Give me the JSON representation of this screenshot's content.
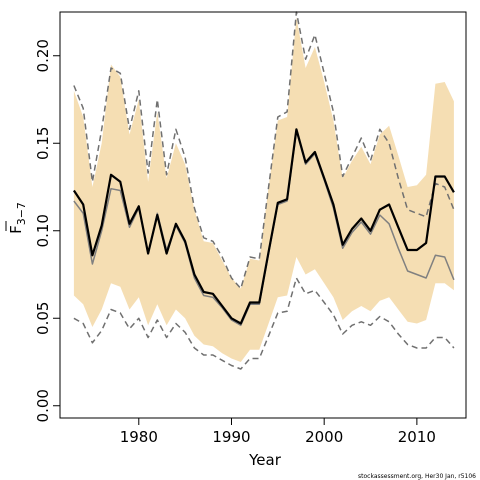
{
  "chart_data": {
    "type": "line",
    "xlabel": "Year",
    "ylabel_main": "F",
    "ylabel_sub": "3−7",
    "xlim": [
      1971.5,
      2015.3
    ],
    "ylim": [
      -0.007,
      0.225
    ],
    "x_ticks": [
      1980,
      1990,
      2000,
      2010
    ],
    "x_tick_labels": [
      "1980",
      "1990",
      "2000",
      "2010"
    ],
    "y_ticks": [
      0.0,
      0.05,
      0.1,
      0.15,
      0.2
    ],
    "y_tick_labels": [
      "0.00",
      "0.05",
      "0.10",
      "0.15",
      "0.20"
    ],
    "grid": false,
    "footnote": "stockassessment.org, Her30 Jan, r5106",
    "colors": {
      "band": "#f5deb3",
      "main": "#000000",
      "alt": "#808080",
      "ci": "#707070"
    },
    "x": [
      1973,
      1974,
      1975,
      1976,
      1977,
      1978,
      1979,
      1980,
      1981,
      1982,
      1983,
      1984,
      1985,
      1986,
      1987,
      1988,
      1989,
      1990,
      1991,
      1992,
      1993,
      1994,
      1995,
      1996,
      1997,
      1998,
      1999,
      2000,
      2001,
      2002,
      2003,
      2004,
      2005,
      2006,
      2007,
      2008,
      2009,
      2010,
      2011,
      2012,
      2013,
      2014
    ],
    "series": [
      {
        "role": "estimate",
        "style": "solid-bold",
        "values": [
          0.123,
          0.115,
          0.086,
          0.103,
          0.132,
          0.128,
          0.104,
          0.114,
          0.087,
          0.109,
          0.087,
          0.104,
          0.094,
          0.075,
          0.065,
          0.064,
          0.057,
          0.05,
          0.047,
          0.059,
          0.059,
          0.088,
          0.116,
          0.118,
          0.158,
          0.139,
          0.145,
          0.13,
          0.115,
          0.092,
          0.101,
          0.107,
          0.1,
          0.112,
          0.115,
          0.102,
          0.089,
          0.089,
          0.093,
          0.131,
          0.131,
          0.122
        ]
      },
      {
        "role": "alternative estimate",
        "style": "solid-grey",
        "values": [
          0.117,
          0.11,
          0.081,
          0.1,
          0.124,
          0.123,
          0.102,
          0.113,
          0.087,
          0.11,
          0.089,
          0.103,
          0.093,
          0.073,
          0.063,
          0.062,
          0.056,
          0.049,
          0.046,
          0.058,
          0.058,
          0.087,
          0.115,
          0.117,
          0.157,
          0.138,
          0.144,
          0.129,
          0.113,
          0.09,
          0.099,
          0.105,
          0.098,
          0.109,
          0.104,
          0.09,
          0.077,
          0.075,
          0.073,
          0.086,
          0.085,
          0.072
        ]
      },
      {
        "role": "band upper",
        "style": "fill",
        "values": [
          0.18,
          0.165,
          0.125,
          0.15,
          0.195,
          0.188,
          0.155,
          0.175,
          0.128,
          0.168,
          0.13,
          0.15,
          0.138,
          0.112,
          0.094,
          0.093,
          0.083,
          0.073,
          0.067,
          0.084,
          0.083,
          0.125,
          0.163,
          0.165,
          0.222,
          0.193,
          0.205,
          0.185,
          0.163,
          0.13,
          0.14,
          0.148,
          0.138,
          0.155,
          0.16,
          0.143,
          0.125,
          0.126,
          0.132,
          0.184,
          0.185,
          0.174
        ]
      },
      {
        "role": "band lower",
        "style": "fill",
        "values": [
          0.063,
          0.058,
          0.045,
          0.055,
          0.07,
          0.068,
          0.055,
          0.062,
          0.046,
          0.058,
          0.046,
          0.055,
          0.05,
          0.04,
          0.035,
          0.034,
          0.03,
          0.027,
          0.025,
          0.032,
          0.032,
          0.047,
          0.062,
          0.063,
          0.085,
          0.075,
          0.078,
          0.07,
          0.062,
          0.049,
          0.054,
          0.057,
          0.054,
          0.06,
          0.062,
          0.055,
          0.048,
          0.047,
          0.049,
          0.07,
          0.07,
          0.066
        ]
      },
      {
        "role": "alternative upper",
        "style": "dashed",
        "values": [
          0.183,
          0.17,
          0.128,
          0.158,
          0.193,
          0.19,
          0.158,
          0.18,
          0.133,
          0.175,
          0.132,
          0.158,
          0.142,
          0.113,
          0.096,
          0.094,
          0.085,
          0.073,
          0.067,
          0.085,
          0.084,
          0.125,
          0.165,
          0.168,
          0.225,
          0.198,
          0.212,
          0.19,
          0.168,
          0.131,
          0.142,
          0.153,
          0.14,
          0.158,
          0.15,
          0.13,
          0.112,
          0.11,
          0.108,
          0.127,
          0.125,
          0.112
        ]
      },
      {
        "role": "alternative lower",
        "style": "dashed",
        "values": [
          0.05,
          0.047,
          0.036,
          0.043,
          0.055,
          0.053,
          0.044,
          0.05,
          0.039,
          0.049,
          0.039,
          0.047,
          0.042,
          0.033,
          0.029,
          0.029,
          0.026,
          0.023,
          0.021,
          0.027,
          0.027,
          0.04,
          0.053,
          0.054,
          0.073,
          0.064,
          0.066,
          0.059,
          0.052,
          0.041,
          0.046,
          0.048,
          0.046,
          0.051,
          0.048,
          0.041,
          0.035,
          0.033,
          0.033,
          0.039,
          0.039,
          0.033
        ]
      }
    ]
  }
}
